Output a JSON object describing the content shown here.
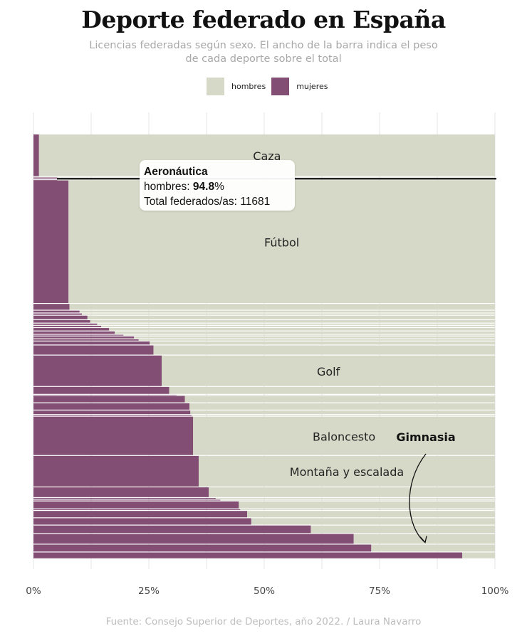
{
  "title": "Deporte federado en España",
  "subtitle": "Licencias federadas según sexo. El ancho de la barra indica el peso de cada deporte sobre el total",
  "caption": "Fuente: Consejo Superior de Deportes, año 2022. / Laura Navarro",
  "colors": {
    "hombres": "#d6d9c7",
    "mujeres": "#824e74",
    "grid": "#e6e6e6"
  },
  "legend": {
    "hombres": "hombres",
    "mujeres": "mujeres"
  },
  "tooltip": {
    "title": "Aeronáutica",
    "line1_prefix": "hombres: ",
    "line1_value": "94.8",
    "line1_suffix": "%",
    "line2_prefix": "Total federados/as: ",
    "line2_value": "11681"
  },
  "annotation": {
    "label": "Gimnasia"
  },
  "chart_data": {
    "type": "bar",
    "orientation": "horizontal",
    "stacked": "percent",
    "x_ticks": [
      "0%",
      "25%",
      "50%",
      "75%",
      "100%"
    ],
    "xlim": [
      0,
      100
    ],
    "bars": [
      {
        "label": "Caza",
        "mujeres": 1.2,
        "weight": 7.6
      },
      {
        "label": "",
        "mujeres": 5.2,
        "weight": 0.2
      },
      {
        "label": "",
        "mujeres": 6.2,
        "weight": 0.3
      },
      {
        "label": "Aeronáutica",
        "mujeres": 5.2,
        "weight": 0.1
      },
      {
        "label": "Fútbol",
        "mujeres": 7.6,
        "weight": 22.0
      },
      {
        "label": "",
        "mujeres": 7.8,
        "weight": 1.2
      },
      {
        "label": "",
        "mujeres": 10.0,
        "weight": 0.5
      },
      {
        "label": "",
        "mujeres": 10.5,
        "weight": 0.4
      },
      {
        "label": "",
        "mujeres": 11.7,
        "weight": 0.8
      },
      {
        "label": "",
        "mujeres": 12.3,
        "weight": 0.6
      },
      {
        "label": "",
        "mujeres": 13.8,
        "weight": 0.4
      },
      {
        "label": "",
        "mujeres": 14.7,
        "weight": 0.4
      },
      {
        "label": "",
        "mujeres": 16.4,
        "weight": 0.6
      },
      {
        "label": "",
        "mujeres": 17.6,
        "weight": 0.6
      },
      {
        "label": "",
        "mujeres": 19.5,
        "weight": 0.3
      },
      {
        "label": "",
        "mujeres": 21.8,
        "weight": 0.5
      },
      {
        "label": "",
        "mujeres": 22.8,
        "weight": 0.4
      },
      {
        "label": "",
        "mujeres": 25.2,
        "weight": 0.7
      },
      {
        "label": "",
        "mujeres": 26.0,
        "weight": 1.8
      },
      {
        "label": "Golf",
        "mujeres": 27.8,
        "weight": 5.6
      },
      {
        "label": "",
        "mujeres": 29.4,
        "weight": 1.4
      },
      {
        "label": "",
        "mujeres": 31.0,
        "weight": 0.2
      },
      {
        "label": "",
        "mujeres": 32.8,
        "weight": 1.3
      },
      {
        "label": "",
        "mujeres": 33.8,
        "weight": 1.3
      },
      {
        "label": "",
        "mujeres": 34.0,
        "weight": 0.8
      },
      {
        "label": "",
        "mujeres": 34.3,
        "weight": 0.3
      },
      {
        "label": "Baloncesto",
        "mujeres": 34.6,
        "weight": 7.0
      },
      {
        "label": "Montaña y escalada",
        "mujeres": 35.8,
        "weight": 5.6
      },
      {
        "label": "",
        "mujeres": 38.0,
        "weight": 1.9
      },
      {
        "label": "",
        "mujeres": 39.5,
        "weight": 0.3
      },
      {
        "label": "",
        "mujeres": 40.5,
        "weight": 0.3
      },
      {
        "label": "",
        "mujeres": 44.5,
        "weight": 1.4
      },
      {
        "label": "",
        "mujeres": 44.8,
        "weight": 0.3
      },
      {
        "label": "",
        "mujeres": 46.3,
        "weight": 1.3
      },
      {
        "label": "",
        "mujeres": 47.2,
        "weight": 1.3
      },
      {
        "label": "",
        "mujeres": 60.1,
        "weight": 1.5
      },
      {
        "label": "",
        "mujeres": 69.4,
        "weight": 1.9
      },
      {
        "label": "",
        "mujeres": 73.2,
        "weight": 1.4
      },
      {
        "label": "Gimnasia",
        "mujeres": 92.9,
        "weight": 1.2
      }
    ]
  }
}
